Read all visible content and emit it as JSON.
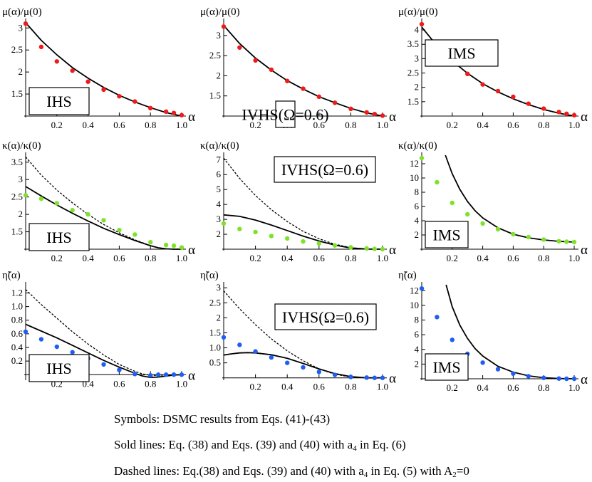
{
  "colors": {
    "mu": "#f01a1a",
    "kappa": "#7ee22a",
    "eta": "#1f5ef2",
    "line": "#000000"
  },
  "chart_data": [
    {
      "id": "mu-ihs",
      "type": "scatter",
      "ylabel": "μ(α)/μ(0)",
      "xlabel": "α",
      "label": "IHS",
      "xlim": [
        0,
        1
      ],
      "ylim": [
        1.0,
        3.15
      ],
      "xticks": [
        0.2,
        0.4,
        0.6,
        0.8,
        1.0
      ],
      "yticks": [
        1.5,
        2.0,
        2.5,
        3.0
      ],
      "points": {
        "x": [
          0,
          0.1,
          0.2,
          0.3,
          0.4,
          0.5,
          0.6,
          0.7,
          0.8,
          0.9,
          0.95,
          1.0
        ],
        "y": [
          3.1,
          2.57,
          2.24,
          2.03,
          1.78,
          1.6,
          1.45,
          1.33,
          1.18,
          1.1,
          1.07,
          1.02
        ],
        "color": "mu"
      },
      "solid": {
        "x": [
          0,
          0.1,
          0.2,
          0.3,
          0.4,
          0.5,
          0.6,
          0.7,
          0.8,
          0.9,
          1.0
        ],
        "y": [
          3.12,
          2.72,
          2.39,
          2.1,
          1.86,
          1.65,
          1.47,
          1.32,
          1.19,
          1.08,
          1.0
        ]
      }
    },
    {
      "id": "mu-ivhs",
      "type": "scatter",
      "ylabel": "μ(α)/μ(0)",
      "xlabel": "α",
      "label": "IVHS(Ω=0.6)",
      "xlim": [
        0,
        1
      ],
      "ylim": [
        1.0,
        3.35
      ],
      "xticks": [
        0.2,
        0.4,
        0.6,
        0.8,
        1.0
      ],
      "yticks": [
        1.5,
        2.0,
        2.5,
        3.0
      ],
      "points": {
        "x": [
          0,
          0.1,
          0.2,
          0.3,
          0.4,
          0.5,
          0.6,
          0.7,
          0.8,
          0.9,
          0.95,
          1.0
        ],
        "y": [
          3.22,
          2.7,
          2.38,
          2.15,
          1.87,
          1.68,
          1.48,
          1.33,
          1.18,
          1.09,
          1.05,
          1.01
        ],
        "color": "mu"
      },
      "solid": {
        "x": [
          0,
          0.1,
          0.2,
          0.3,
          0.4,
          0.5,
          0.6,
          0.7,
          0.8,
          0.9,
          1.0
        ],
        "y": [
          3.25,
          2.8,
          2.44,
          2.14,
          1.88,
          1.67,
          1.48,
          1.33,
          1.19,
          1.08,
          1.0
        ]
      }
    },
    {
      "id": "mu-ims",
      "type": "scatter",
      "ylabel": "μ(α)/μ(0)",
      "xlabel": "α",
      "label": "IMS",
      "xlim": [
        0,
        1
      ],
      "ylim": [
        1.0,
        4.3
      ],
      "xticks": [
        0.2,
        0.4,
        0.6,
        0.8,
        1.0
      ],
      "yticks": [
        1.5,
        2.0,
        2.5,
        3.0,
        3.5,
        4.0
      ],
      "points": {
        "x": [
          0,
          0.1,
          0.2,
          0.3,
          0.4,
          0.5,
          0.6,
          0.7,
          0.8,
          0.9,
          0.95,
          1.0
        ],
        "y": [
          4.2,
          3.47,
          2.93,
          2.47,
          2.1,
          1.87,
          1.67,
          1.43,
          1.26,
          1.14,
          1.08,
          1.03
        ],
        "color": "mu"
      },
      "solid": {
        "x": [
          0,
          0.1,
          0.2,
          0.3,
          0.4,
          0.5,
          0.6,
          0.7,
          0.8,
          0.9,
          1.0
        ],
        "y": [
          4.1,
          3.45,
          2.92,
          2.49,
          2.13,
          1.84,
          1.6,
          1.4,
          1.23,
          1.1,
          1.0
        ]
      }
    },
    {
      "id": "kappa-ihs",
      "type": "scatter",
      "ylabel": "κ(α)/κ(0)",
      "xlabel": "α",
      "label": "IHS",
      "xlim": [
        0,
        1
      ],
      "ylim": [
        1.0,
        3.7
      ],
      "xticks": [
        0.2,
        0.4,
        0.6,
        0.8,
        1.0
      ],
      "yticks": [
        1.5,
        2.0,
        2.5,
        3.0,
        3.5
      ],
      "points": {
        "x": [
          0,
          0.1,
          0.2,
          0.3,
          0.4,
          0.5,
          0.6,
          0.7,
          0.8,
          0.9,
          0.95,
          1.0
        ],
        "y": [
          2.55,
          2.45,
          2.32,
          2.12,
          2.0,
          1.83,
          1.55,
          1.42,
          1.2,
          1.12,
          1.1,
          1.05
        ],
        "color": "kappa"
      },
      "solid": {
        "x": [
          0,
          0.1,
          0.2,
          0.3,
          0.4,
          0.5,
          0.6,
          0.7,
          0.8,
          0.85,
          0.9,
          0.95,
          1.0
        ],
        "y": [
          2.8,
          2.53,
          2.27,
          2.03,
          1.81,
          1.6,
          1.42,
          1.25,
          1.1,
          1.04,
          1.01,
          1.0,
          1.0
        ]
      },
      "dashed": {
        "x": [
          0,
          0.1,
          0.2,
          0.3,
          0.4,
          0.5,
          0.6,
          0.7,
          0.8,
          0.85,
          0.9,
          0.95,
          1.0
        ],
        "y": [
          3.65,
          3.13,
          2.7,
          2.33,
          2.0,
          1.71,
          1.47,
          1.27,
          1.1,
          1.04,
          1.01,
          1.0,
          1.0
        ]
      }
    },
    {
      "id": "kappa-ivhs",
      "type": "scatter",
      "ylabel": "κ(α)/κ(0)",
      "xlabel": "α",
      "label": "IVHS(Ω=0.6)",
      "xlim": [
        0,
        1
      ],
      "ylim": [
        1.0,
        7.3
      ],
      "xticks": [
        0.2,
        0.4,
        0.6,
        0.8,
        1.0
      ],
      "yticks": [
        2,
        3,
        4,
        5,
        6,
        7
      ],
      "points": {
        "x": [
          0,
          0.1,
          0.2,
          0.3,
          0.4,
          0.5,
          0.6,
          0.7,
          0.8,
          0.9,
          0.95,
          1.0
        ],
        "y": [
          2.72,
          2.35,
          2.15,
          1.88,
          1.72,
          1.52,
          1.38,
          1.25,
          1.12,
          1.05,
          1.02,
          1.0
        ],
        "color": "kappa"
      },
      "solid": {
        "x": [
          0,
          0.1,
          0.2,
          0.3,
          0.4,
          0.5,
          0.6,
          0.7,
          0.8,
          0.9,
          1.0
        ],
        "y": [
          3.3,
          3.2,
          2.95,
          2.62,
          2.25,
          1.88,
          1.55,
          1.27,
          1.08,
          1.01,
          1.0
        ]
      },
      "dashed": {
        "x": [
          0,
          0.1,
          0.2,
          0.3,
          0.4,
          0.5,
          0.6,
          0.7,
          0.8,
          0.9,
          1.0
        ],
        "y": [
          7.1,
          5.75,
          4.6,
          3.65,
          2.85,
          2.2,
          1.7,
          1.33,
          1.1,
          1.01,
          1.0
        ]
      }
    },
    {
      "id": "kappa-ims",
      "type": "scatter",
      "ylabel": "κ(α)/κ(0)",
      "xlabel": "α",
      "label": "IMS",
      "xlim": [
        0,
        1
      ],
      "ylim": [
        0,
        13.2
      ],
      "xticks": [
        0.2,
        0.4,
        0.6,
        0.8,
        1.0
      ],
      "yticks": [
        2,
        4,
        6,
        8,
        10,
        12
      ],
      "points": {
        "x": [
          0,
          0.1,
          0.2,
          0.3,
          0.4,
          0.5,
          0.6,
          0.7,
          0.8,
          0.9,
          0.95,
          1.0
        ],
        "y": [
          12.8,
          9.4,
          6.5,
          4.9,
          3.6,
          2.8,
          2.1,
          1.7,
          1.35,
          1.12,
          1.05,
          1.0
        ],
        "color": "kappa"
      },
      "solid": {
        "x": [
          0.155,
          0.2,
          0.25,
          0.3,
          0.35,
          0.4,
          0.5,
          0.6,
          0.7,
          0.8,
          0.9,
          1.0
        ],
        "y": [
          13.2,
          10.6,
          8.4,
          6.7,
          5.4,
          4.4,
          3.0,
          2.1,
          1.6,
          1.3,
          1.1,
          1.0
        ]
      }
    },
    {
      "id": "eta-ihs",
      "type": "scatter",
      "ylabel": "η̃(α)",
      "xlabel": "α",
      "label": "IHS",
      "xlim": [
        0,
        1
      ],
      "ylim": [
        -0.06,
        1.32
      ],
      "xticks": [
        0.2,
        0.4,
        0.6,
        0.8,
        1.0
      ],
      "yticks": [
        0.2,
        0.4,
        0.6,
        0.8,
        1.0,
        1.2
      ],
      "points": {
        "x": [
          0,
          0.1,
          0.2,
          0.3,
          0.4,
          0.5,
          0.6,
          0.7,
          0.8,
          0.85,
          0.9,
          0.95,
          1.0
        ],
        "y": [
          0.63,
          0.52,
          0.41,
          0.33,
          0.24,
          0.15,
          0.07,
          0.01,
          -0.01,
          0.0,
          0.0,
          0.0,
          0.0
        ],
        "color": "eta"
      },
      "solid": {
        "x": [
          0,
          0.1,
          0.2,
          0.3,
          0.4,
          0.5,
          0.6,
          0.7,
          0.75,
          0.8,
          0.85,
          0.9,
          0.95,
          1.0
        ],
        "y": [
          0.74,
          0.64,
          0.54,
          0.43,
          0.32,
          0.21,
          0.11,
          0.02,
          -0.02,
          -0.04,
          -0.035,
          -0.02,
          -0.005,
          0.0
        ]
      },
      "dashed": {
        "x": [
          0,
          0.1,
          0.2,
          0.3,
          0.4,
          0.5,
          0.6,
          0.7,
          0.75,
          0.8,
          0.85,
          0.9,
          0.95,
          1.0
        ],
        "y": [
          1.25,
          1.03,
          0.83,
          0.63,
          0.45,
          0.29,
          0.15,
          0.05,
          0.01,
          -0.01,
          -0.01,
          -0.005,
          0.0,
          0.0
        ]
      }
    },
    {
      "id": "eta-ivhs",
      "type": "scatter",
      "ylabel": "η̃(α)",
      "xlabel": "α",
      "label": "IVHS(Ω=0.6)",
      "xlim": [
        0,
        1
      ],
      "ylim": [
        -0.03,
        3.1
      ],
      "xticks": [
        0.2,
        0.4,
        0.6,
        0.8,
        1.0
      ],
      "yticks": [
        0.5,
        1.0,
        1.5,
        2.0,
        2.5,
        3.0
      ],
      "points": {
        "x": [
          0,
          0.1,
          0.2,
          0.3,
          0.4,
          0.5,
          0.6,
          0.7,
          0.8,
          0.9,
          0.95,
          1.0
        ],
        "y": [
          1.35,
          1.1,
          0.88,
          0.68,
          0.5,
          0.35,
          0.2,
          0.1,
          0.03,
          0.01,
          0.0,
          0.0
        ],
        "color": "eta"
      },
      "solid": {
        "x": [
          0,
          0.05,
          0.1,
          0.15,
          0.2,
          0.3,
          0.4,
          0.5,
          0.6,
          0.7,
          0.8,
          0.9,
          1.0
        ],
        "y": [
          0.76,
          0.8,
          0.83,
          0.84,
          0.83,
          0.77,
          0.65,
          0.48,
          0.3,
          0.14,
          0.04,
          0.0,
          0.0
        ]
      },
      "dashed": {
        "x": [
          0,
          0.1,
          0.2,
          0.3,
          0.4,
          0.5,
          0.6,
          0.7,
          0.8,
          0.9,
          1.0
        ],
        "y": [
          2.9,
          2.3,
          1.77,
          1.3,
          0.9,
          0.57,
          0.3,
          0.12,
          0.03,
          0.0,
          0.0
        ]
      }
    },
    {
      "id": "eta-ims",
      "type": "scatter",
      "ylabel": "η̃(α)",
      "xlabel": "α",
      "label": "IMS",
      "xlim": [
        0,
        1
      ],
      "ylim": [
        0,
        12.8
      ],
      "xticks": [
        0.2,
        0.4,
        0.6,
        0.8,
        1.0
      ],
      "yticks": [
        2,
        4,
        6,
        8,
        10,
        12
      ],
      "points": {
        "x": [
          0,
          0.1,
          0.2,
          0.3,
          0.4,
          0.5,
          0.6,
          0.7,
          0.8,
          0.9,
          0.95,
          1.0
        ],
        "y": [
          12.3,
          8.4,
          5.3,
          3.4,
          2.2,
          1.3,
          0.7,
          0.35,
          0.12,
          0.03,
          0.0,
          0.0
        ],
        "color": "eta"
      },
      "solid": {
        "x": [
          0.16,
          0.2,
          0.25,
          0.3,
          0.35,
          0.4,
          0.5,
          0.6,
          0.7,
          0.8,
          0.9,
          1.0
        ],
        "y": [
          12.8,
          9.8,
          7.3,
          5.5,
          4.1,
          3.1,
          1.7,
          0.9,
          0.4,
          0.15,
          0.03,
          0.0
        ]
      }
    }
  ],
  "caption": {
    "line1": "Symbols: DSMC results from Eqs. (41)-(43)",
    "line2_a": "Sold lines: Eq. (38) and Eqs. (39) and (40) with a",
    "line2_sub": "4",
    "line2_b": " in Eq. (6)",
    "line3_a": "Dashed lines: Eq.(38) and Eqs. (39) and (40) with a",
    "line3_sub": "4",
    "line3_b": " in Eq. (5) with A",
    "line3_sub2": "2",
    "line3_c": "=0"
  }
}
